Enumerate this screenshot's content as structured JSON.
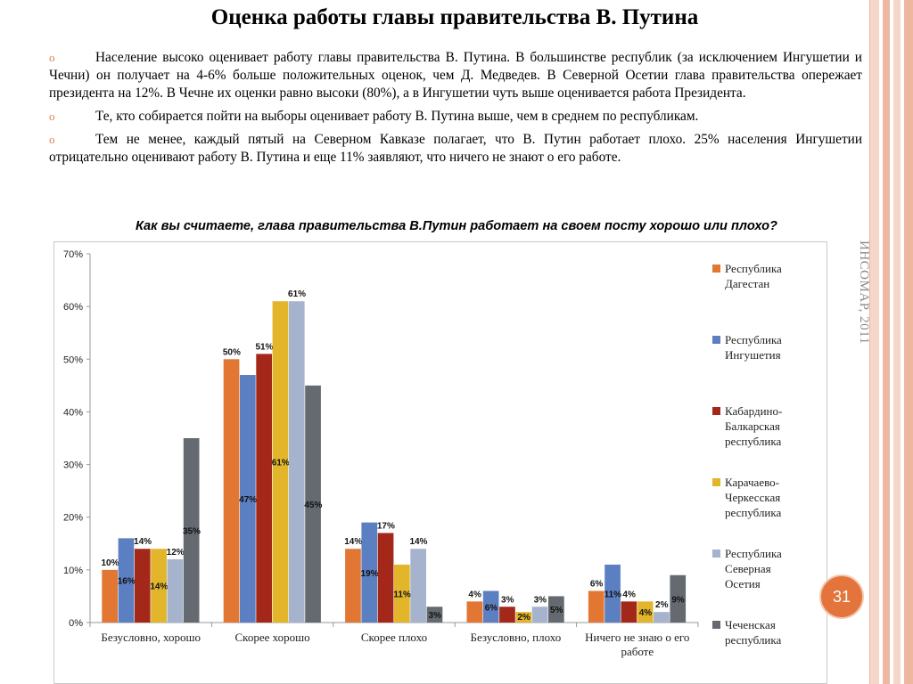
{
  "slide": {
    "title": "Оценка работы главы правительства В. Путина",
    "bullet_icon": "circle-bullet-icon",
    "bullets": [
      "Население высоко оценивает работу главы правительства В. Путина. В большинстве республик (за исключением Ингушетии и Чечни) он получает на 4-6% больше положительных оценок, чем Д. Медведев. В Северной Осетии глава правительства опережает президента на 12%. В Чечне их оценки равно высоки (80%), а в Ингушетии чуть выше оценивается работа Президента.",
      "Те, кто собирается пойти на выборы оценивает работу В. Путина выше, чем в среднем по республикам.",
      "Тем не менее, каждый пятый на Северном Кавказе полагает, что В. Путин работает плохо. 25% населения Ингушетии отрицательно оценивают работу В. Путина и еще 11% заявляют, что ничего не знают о его работе."
    ],
    "question": "Как вы считаете, глава правительства В.Путин работает на своем посту хорошо или плохо?",
    "source": "ИНСОМАР, 2011",
    "page_number": "31",
    "colors": {
      "accent": "#e3743b",
      "stripes": [
        "#f6d6c8",
        "#eeb79f",
        "#f6d6c8",
        "#eeb79f"
      ]
    }
  },
  "chart_data": {
    "type": "bar",
    "categories": [
      "Безусловно, хорошо",
      "Скорее хорошо",
      "Скорее плохо",
      "Безусловно, плохо",
      "Ничего не знаю о его работе"
    ],
    "ylim": [
      0,
      70
    ],
    "yticks": [
      0,
      10,
      20,
      30,
      40,
      50,
      60,
      70
    ],
    "ytick_labels": [
      "0%",
      "10%",
      "20%",
      "30%",
      "40%",
      "50%",
      "60%",
      "70%"
    ],
    "grid": true,
    "legend_position": "right",
    "series": [
      {
        "name": "Республика Дагестан",
        "color": "#e27734",
        "values": [
          10,
          50,
          14,
          4,
          6
        ],
        "labels": [
          "10%",
          "50%",
          "14%",
          "4%",
          "6%"
        ]
      },
      {
        "name": "Республика Ингушетия",
        "color": "#5b7fc0",
        "values": [
          16,
          47,
          19,
          6,
          11
        ],
        "labels": [
          "16%",
          "47%",
          "19%",
          "6%",
          "11%"
        ]
      },
      {
        "name": "Кабардино-Балкарская республика",
        "color": "#a3281a",
        "values": [
          14,
          51,
          17,
          3,
          4
        ],
        "labels": [
          "14%",
          "51%",
          "17%",
          "3%",
          "4%"
        ]
      },
      {
        "name": "Карачаево-Черкесская республика",
        "color": "#e2b52a",
        "values": [
          14,
          61,
          11,
          2,
          4
        ],
        "labels": [
          "14%",
          "61%",
          "11%",
          "2%",
          "4%"
        ]
      },
      {
        "name": "Республика Северная Осетия",
        "color": "#a6b3cc",
        "values": [
          12,
          61,
          14,
          3,
          2
        ],
        "labels": [
          "12%",
          "61%",
          "14%",
          "3%",
          "2%"
        ]
      },
      {
        "name": "Чеченская республика",
        "color": "#646a70",
        "values": [
          35,
          45,
          3,
          5,
          9
        ],
        "labels": [
          "35%",
          "45%",
          "3%",
          "5%",
          "9%"
        ]
      }
    ]
  }
}
